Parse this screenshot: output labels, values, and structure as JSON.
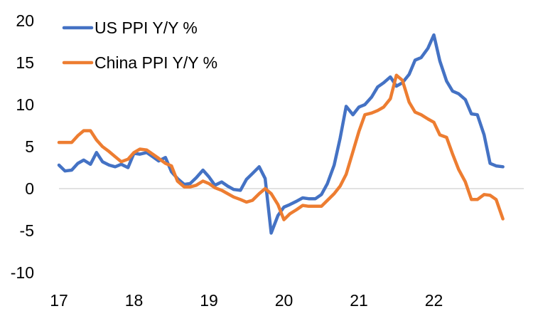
{
  "chart_data": {
    "type": "line",
    "title": "",
    "xlabel": "",
    "ylabel": "",
    "ylim": [
      -10,
      20
    ],
    "y_ticks": [
      -10,
      -5,
      0,
      5,
      10,
      15,
      20
    ],
    "y_tick_labels": [
      "-10",
      "-5",
      "0",
      "5",
      "10",
      "15",
      "20"
    ],
    "x_ticks": [
      17,
      18,
      19,
      20,
      21,
      22
    ],
    "x_tick_labels": [
      "17",
      "18",
      "19",
      "20",
      "21",
      "22"
    ],
    "xlim": [
      17,
      23.2
    ],
    "grid": false,
    "legend_position": "top-left",
    "series": [
      {
        "name": "US PPI Y/Y %",
        "color": "#4472C4",
        "x": [
          17.0,
          17.08,
          17.17,
          17.25,
          17.33,
          17.42,
          17.5,
          17.58,
          17.67,
          17.75,
          17.83,
          17.92,
          18.0,
          18.08,
          18.17,
          18.25,
          18.33,
          18.42,
          18.5,
          18.58,
          18.67,
          18.75,
          18.83,
          18.92,
          19.0,
          19.08,
          19.17,
          19.25,
          19.33,
          19.42,
          19.5,
          19.58,
          19.67,
          19.75,
          19.83,
          19.92,
          20.0,
          20.08,
          20.17,
          20.25,
          20.33,
          20.42,
          20.5,
          20.58,
          20.67,
          20.75,
          20.83,
          20.92,
          21.0,
          21.08,
          21.17,
          21.25,
          21.33,
          21.42,
          21.5,
          21.58,
          21.67,
          21.75,
          21.83,
          21.92,
          22.0,
          22.08,
          22.17,
          22.25,
          22.33,
          22.42,
          22.5,
          22.58,
          22.67,
          22.75,
          22.83,
          22.92
        ],
        "values": [
          2.8,
          2.1,
          2.2,
          3.0,
          3.4,
          2.9,
          4.3,
          3.2,
          2.8,
          2.6,
          2.9,
          2.5,
          4.2,
          4.1,
          4.3,
          3.8,
          3.3,
          3.7,
          2.0,
          1.2,
          0.5,
          0.6,
          1.3,
          2.2,
          1.4,
          0.4,
          0.8,
          0.3,
          -0.1,
          -0.2,
          1.1,
          1.8,
          2.6,
          1.2,
          -5.3,
          -3.2,
          -2.2,
          -1.9,
          -1.5,
          -1.1,
          -1.2,
          -1.2,
          -0.7,
          0.6,
          2.8,
          6.0,
          9.8,
          8.8,
          9.7,
          10.0,
          10.9,
          12.1,
          12.6,
          13.3,
          12.2,
          12.6,
          13.6,
          15.3,
          15.6,
          16.7,
          18.3,
          15.2,
          12.8,
          11.6,
          11.3,
          10.6,
          8.9,
          8.8,
          6.4,
          3.0,
          2.7,
          2.6
        ]
      },
      {
        "name": "China PPI Y/Y %",
        "color": "#ED7D31",
        "x": [
          17.0,
          17.08,
          17.17,
          17.25,
          17.33,
          17.42,
          17.5,
          17.58,
          17.67,
          17.75,
          17.83,
          17.92,
          18.0,
          18.08,
          18.17,
          18.25,
          18.33,
          18.42,
          18.5,
          18.58,
          18.67,
          18.75,
          18.83,
          18.92,
          19.0,
          19.08,
          19.17,
          19.25,
          19.33,
          19.42,
          19.5,
          19.58,
          19.67,
          19.75,
          19.83,
          19.92,
          20.0,
          20.08,
          20.17,
          20.25,
          20.33,
          20.42,
          20.5,
          20.58,
          20.67,
          20.75,
          20.83,
          20.92,
          21.0,
          21.08,
          21.17,
          21.25,
          21.33,
          21.42,
          21.5,
          21.58,
          21.67,
          21.75,
          21.83,
          21.92,
          22.0,
          22.08,
          22.17,
          22.25,
          22.33,
          22.42,
          22.5,
          22.58,
          22.67,
          22.75,
          22.83,
          22.92
        ],
        "values": [
          5.5,
          5.5,
          5.5,
          6.3,
          6.9,
          6.9,
          5.8,
          5.0,
          4.4,
          3.8,
          3.2,
          3.5,
          4.3,
          4.7,
          4.6,
          4.1,
          3.6,
          3.0,
          2.7,
          0.9,
          0.2,
          0.2,
          0.4,
          0.9,
          0.6,
          0.1,
          -0.2,
          -0.6,
          -1.0,
          -1.3,
          -1.6,
          -1.4,
          -0.6,
          0.0,
          -0.6,
          -1.9,
          -3.7,
          -3.0,
          -2.5,
          -2.0,
          -2.1,
          -2.1,
          -2.1,
          -1.4,
          -0.6,
          0.3,
          1.7,
          4.4,
          6.8,
          8.8,
          9.0,
          9.3,
          9.7,
          10.7,
          13.5,
          12.9,
          10.3,
          9.1,
          8.8,
          8.3,
          7.9,
          6.4,
          6.1,
          4.1,
          2.3,
          0.8,
          -1.3,
          -1.3,
          -0.7,
          -0.8,
          -1.3,
          -3.6
        ]
      }
    ]
  }
}
